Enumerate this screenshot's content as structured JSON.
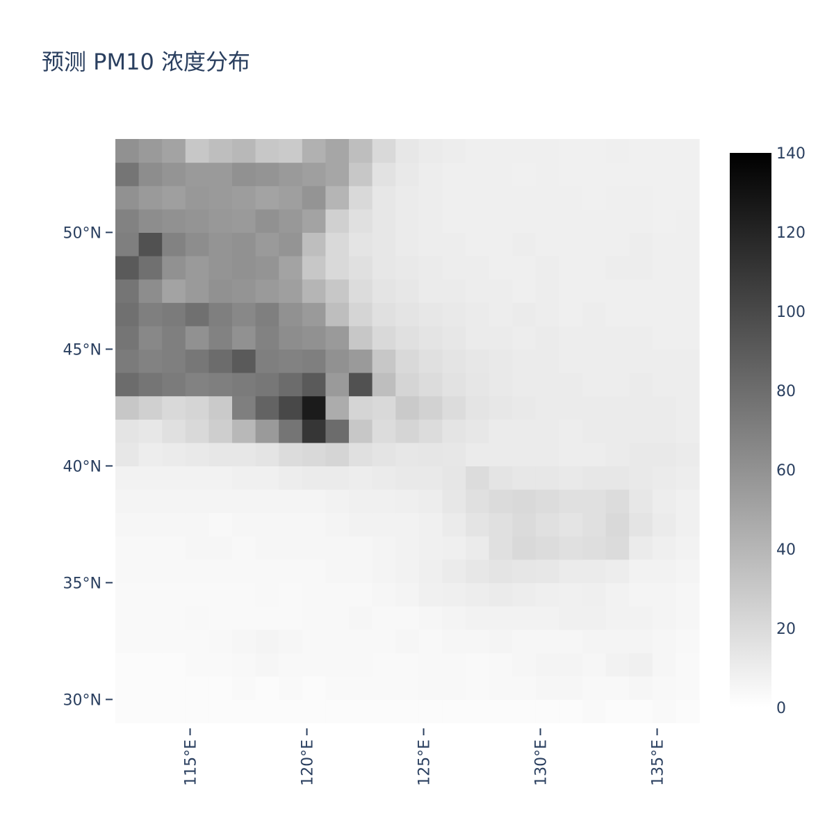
{
  "chart_data": {
    "type": "heatmap",
    "title": "预测 PM10 浓度分布",
    "xlabel": "",
    "ylabel": "",
    "x_range": [
      111.8,
      136.8
    ],
    "y_range": [
      29,
      54
    ],
    "x_ticks": [
      {
        "value": 115,
        "label": "115°E"
      },
      {
        "value": 120,
        "label": "120°E"
      },
      {
        "value": 125,
        "label": "125°E"
      },
      {
        "value": 130,
        "label": "130°E"
      },
      {
        "value": 135,
        "label": "135°E"
      }
    ],
    "y_ticks": [
      {
        "value": 50,
        "label": "50°N"
      },
      {
        "value": 45,
        "label": "45°N"
      },
      {
        "value": 40,
        "label": "40°N"
      },
      {
        "value": 35,
        "label": "35°N"
      },
      {
        "value": 30,
        "label": "30°N"
      }
    ],
    "colorscale": [
      "#ffffff",
      "#000000"
    ],
    "zrange": [
      0,
      140
    ],
    "colorbar": {
      "position": "right",
      "ticks": [
        {
          "value": 0,
          "label": "0"
        },
        {
          "value": 20,
          "label": "20"
        },
        {
          "value": 40,
          "label": "40"
        },
        {
          "value": 60,
          "label": "60"
        },
        {
          "value": 80,
          "label": "80"
        },
        {
          "value": 100,
          "label": "100"
        },
        {
          "value": 120,
          "label": "120"
        },
        {
          "value": 140,
          "label": "140"
        }
      ]
    },
    "grid_lon_start": 111.8,
    "grid_lat_start": 29,
    "grid_step": 1,
    "z": [
      [
        1,
        1,
        1,
        1,
        1,
        1,
        1,
        1,
        1,
        1,
        1,
        1,
        1,
        1,
        1,
        1,
        1,
        1,
        1,
        1,
        2,
        1,
        1,
        2,
        1
      ],
      [
        1,
        1,
        1,
        1,
        1,
        2,
        1,
        2,
        1,
        2,
        2,
        2,
        2,
        3,
        3,
        2,
        3,
        3,
        4,
        4,
        3,
        3,
        4,
        3,
        2
      ],
      [
        1,
        1,
        1,
        2,
        2,
        3,
        4,
        3,
        3,
        3,
        3,
        2,
        2,
        3,
        3,
        2,
        3,
        4,
        5,
        5,
        4,
        6,
        7,
        4,
        2
      ],
      [
        2,
        2,
        2,
        2,
        3,
        4,
        5,
        4,
        3,
        3,
        3,
        3,
        4,
        3,
        4,
        4,
        5,
        4,
        4,
        4,
        5,
        5,
        5,
        4,
        3
      ],
      [
        2,
        2,
        2,
        3,
        2,
        2,
        2,
        2,
        3,
        3,
        4,
        3,
        3,
        4,
        5,
        6,
        6,
        6,
        6,
        7,
        7,
        6,
        6,
        5,
        4
      ],
      [
        2,
        2,
        2,
        2,
        2,
        2,
        3,
        2,
        3,
        3,
        3,
        4,
        5,
        7,
        8,
        9,
        10,
        9,
        8,
        7,
        8,
        6,
        5,
        5,
        4
      ],
      [
        3,
        3,
        3,
        3,
        3,
        3,
        3,
        3,
        3,
        4,
        4,
        5,
        6,
        8,
        10,
        12,
        14,
        13,
        12,
        10,
        10,
        9,
        6,
        6,
        5
      ],
      [
        3,
        3,
        3,
        4,
        4,
        3,
        4,
        4,
        4,
        4,
        4,
        5,
        6,
        7,
        8,
        10,
        16,
        20,
        18,
        16,
        17,
        19,
        10,
        8,
        6
      ],
      [
        4,
        4,
        4,
        4,
        3,
        4,
        4,
        4,
        4,
        5,
        6,
        6,
        6,
        7,
        10,
        14,
        16,
        19,
        16,
        14,
        16,
        20,
        14,
        10,
        7
      ],
      [
        5,
        5,
        5,
        5,
        5,
        5,
        5,
        5,
        5,
        6,
        7,
        7,
        8,
        9,
        12,
        16,
        19,
        20,
        18,
        16,
        16,
        18,
        12,
        9,
        7
      ],
      [
        6,
        6,
        6,
        6,
        6,
        7,
        7,
        9,
        10,
        10,
        9,
        10,
        11,
        11,
        13,
        18,
        14,
        12,
        12,
        11,
        12,
        12,
        11,
        10,
        9
      ],
      [
        12,
        9,
        10,
        11,
        12,
        12,
        14,
        18,
        20,
        22,
        16,
        14,
        12,
        13,
        12,
        10,
        10,
        10,
        10,
        9,
        9,
        10,
        11,
        11,
        10
      ],
      [
        14,
        12,
        16,
        20,
        26,
        38,
        55,
        75,
        110,
        80,
        30,
        18,
        22,
        18,
        14,
        12,
        10,
        10,
        10,
        9,
        10,
        10,
        10,
        10,
        9
      ],
      [
        30,
        25,
        20,
        22,
        28,
        70,
        85,
        100,
        125,
        45,
        22,
        20,
        28,
        24,
        18,
        14,
        12,
        11,
        10,
        10,
        10,
        10,
        10,
        10,
        9
      ],
      [
        80,
        75,
        72,
        68,
        70,
        72,
        74,
        80,
        90,
        55,
        95,
        35,
        22,
        18,
        15,
        13,
        11,
        10,
        10,
        10,
        9,
        9,
        10,
        9,
        9
      ],
      [
        72,
        68,
        70,
        74,
        80,
        90,
        70,
        68,
        70,
        60,
        55,
        30,
        20,
        16,
        14,
        12,
        11,
        10,
        10,
        9,
        9,
        9,
        9,
        9,
        9
      ],
      [
        75,
        65,
        70,
        60,
        68,
        60,
        68,
        62,
        60,
        55,
        30,
        20,
        16,
        14,
        12,
        10,
        10,
        9,
        10,
        9,
        9,
        9,
        9,
        8,
        8
      ],
      [
        78,
        70,
        72,
        78,
        70,
        65,
        70,
        60,
        55,
        35,
        22,
        16,
        14,
        12,
        11,
        10,
        9,
        10,
        9,
        8,
        9,
        8,
        8,
        8,
        8
      ],
      [
        75,
        62,
        50,
        55,
        60,
        58,
        55,
        52,
        40,
        30,
        18,
        14,
        12,
        10,
        10,
        9,
        9,
        8,
        9,
        8,
        8,
        8,
        8,
        8,
        8
      ],
      [
        90,
        78,
        60,
        55,
        58,
        60,
        58,
        50,
        30,
        20,
        16,
        12,
        11,
        10,
        9,
        9,
        8,
        8,
        9,
        8,
        8,
        9,
        9,
        8,
        8
      ],
      [
        70,
        95,
        68,
        62,
        58,
        60,
        55,
        58,
        35,
        20,
        14,
        12,
        10,
        9,
        9,
        8,
        8,
        9,
        8,
        8,
        8,
        8,
        9,
        8,
        8
      ],
      [
        68,
        62,
        60,
        58,
        56,
        55,
        60,
        56,
        50,
        25,
        16,
        12,
        10,
        9,
        8,
        8,
        8,
        8,
        8,
        8,
        8,
        8,
        8,
        7,
        8
      ],
      [
        60,
        55,
        52,
        56,
        55,
        53,
        50,
        52,
        58,
        40,
        20,
        12,
        10,
        9,
        8,
        8,
        8,
        8,
        8,
        8,
        7,
        8,
        8,
        7,
        7
      ],
      [
        75,
        62,
        58,
        55,
        55,
        60,
        58,
        55,
        52,
        48,
        30,
        15,
        11,
        9,
        8,
        8,
        8,
        7,
        8,
        7,
        7,
        7,
        7,
        7,
        7
      ],
      [
        60,
        55,
        50,
        30,
        35,
        38,
        30,
        28,
        42,
        48,
        35,
        20,
        12,
        10,
        9,
        8,
        8,
        8,
        8,
        7,
        7,
        8,
        7,
        7,
        7
      ]
    ]
  }
}
